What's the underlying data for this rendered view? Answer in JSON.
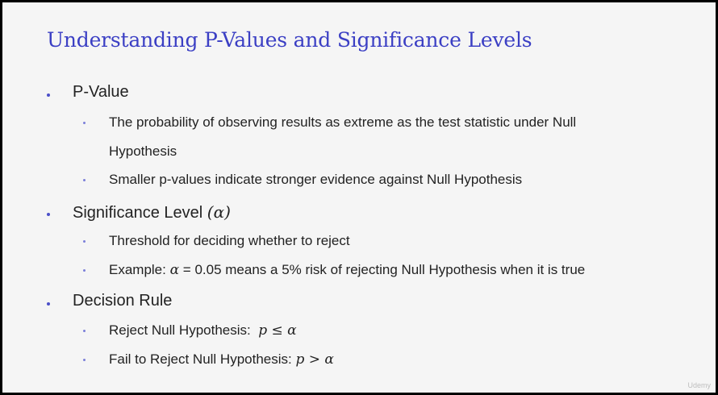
{
  "slide": {
    "title": "Understanding P-Values and Significance Levels",
    "sections": [
      {
        "heading": "P-Value",
        "items": [
          {
            "line1": "The probability of observing results as extreme as the test statistic under Null",
            "line2": "Hypothesis"
          },
          {
            "text": "Smaller p-values indicate stronger evidence against Null Hypothesis"
          }
        ]
      },
      {
        "heading": "Significance Level",
        "heading_symbol": "(α)",
        "items": [
          {
            "text": "Threshold for deciding whether to reject"
          },
          {
            "prefix": "Example: ",
            "symbol": "α",
            "suffix": " = 0.05 means a 5% risk of rejecting Null Hypothesis when it is true"
          }
        ]
      },
      {
        "heading": "Decision Rule",
        "items": [
          {
            "prefix": "Reject Null Hypothesis:  ",
            "formula": "p ≤ α"
          },
          {
            "prefix": "Fail to Reject Null Hypothesis: ",
            "formula": "p > α"
          }
        ]
      }
    ]
  },
  "watermark": "Udemy",
  "colors": {
    "title": "#3b3fc4",
    "bullet_level1": "#4b4fc8",
    "bullet_level2": "#7b7fd9",
    "text": "#222222",
    "background": "#f5f5f5"
  }
}
